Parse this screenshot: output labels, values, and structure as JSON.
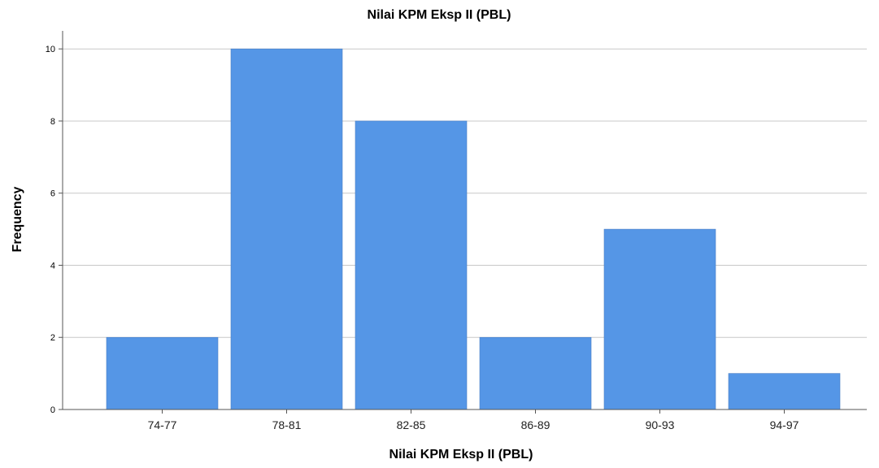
{
  "chart_data": {
    "type": "bar",
    "title": "Nilai KPM Eksp II (PBL)",
    "xlabel": "Nilai KPM Eksp II (PBL)",
    "ylabel": "Frequency",
    "categories": [
      "74-77",
      "78-81",
      "82-85",
      "86-89",
      "90-93",
      "94-97"
    ],
    "values": [
      2,
      10,
      8,
      2,
      5,
      1
    ],
    "ylim": [
      0,
      10.5
    ],
    "yticks": [
      0,
      2,
      4,
      6,
      8,
      10
    ],
    "grid": true,
    "legend": "none",
    "colors": {
      "bar": "#5596e6",
      "grid": "#c8c8c8",
      "axis": "#555555"
    }
  }
}
